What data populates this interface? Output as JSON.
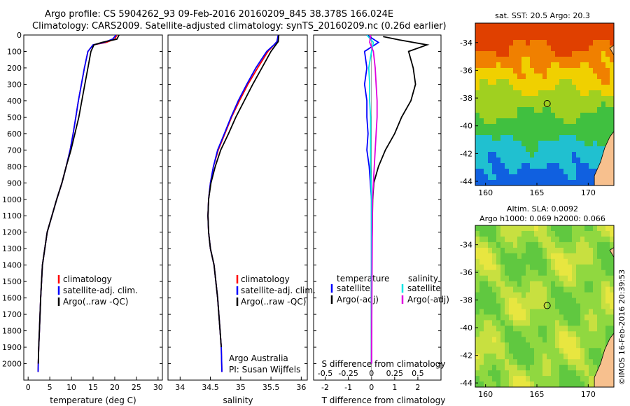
{
  "header": {
    "line1": "Argo profile: CS 5904262_93 09-Feb-2016 20160209_845 38.378S 166.024E",
    "line2": "Climatology: CARS2009. Satellite-adjusted climatology: synTS_20160209.nc (0.26d earlier)"
  },
  "colors": {
    "climatology": "#ff0000",
    "satellite": "#0000ff",
    "argo": "#000000",
    "sal_satellite": "#00e5e5",
    "sal_argo": "#e000e0",
    "land": "#f7c08e"
  },
  "chart_data": [
    {
      "type": "line",
      "xlabel": "temperature (deg C)",
      "ylabel": "",
      "xlim": [
        -1,
        31
      ],
      "ylim": [
        2100,
        0
      ],
      "x_ticks": [
        "0",
        "5",
        "10",
        "15",
        "20",
        "25",
        "30"
      ],
      "y_ticks": [
        "0",
        "100",
        "200",
        "300",
        "400",
        "500",
        "600",
        "700",
        "800",
        "900",
        "1000",
        "1100",
        "1200",
        "1300",
        "1400",
        "1500",
        "1600",
        "1700",
        "1800",
        "1900",
        "2000"
      ],
      "legend": [
        "climatology",
        "satellite-adj. clim.",
        "Argo(..raw -QC)"
      ],
      "legend_position": "lower-center",
      "series": [
        {
          "name": "climatology",
          "color": "#ff0000",
          "x": [
            20.5,
            20,
            18,
            15,
            13.8,
            13,
            12.3,
            11.6,
            11,
            10.4,
            9.7,
            8.8,
            7.8,
            6.6,
            5.5,
            4.4,
            3.3,
            2.9,
            2.6,
            2.45,
            2.35,
            2.3
          ],
          "y": [
            0,
            25,
            45,
            60,
            100,
            200,
            300,
            400,
            500,
            600,
            700,
            800,
            900,
            1000,
            1100,
            1200,
            1400,
            1600,
            1800,
            1900,
            2000,
            2050
          ]
        },
        {
          "name": "satellite-adj. clim.",
          "color": "#0000ff",
          "x": [
            20.3,
            19.5,
            17.5,
            15,
            13.8,
            13,
            12.3,
            11.6,
            11,
            10.4,
            9.7,
            8.8,
            7.8,
            6.6,
            5.5,
            4.4,
            3.3,
            2.9,
            2.6,
            2.45,
            2.35,
            2.3
          ],
          "y": [
            0,
            25,
            45,
            60,
            100,
            200,
            300,
            400,
            500,
            600,
            700,
            800,
            900,
            1000,
            1100,
            1200,
            1400,
            1600,
            1800,
            1900,
            2000,
            2050
          ]
        },
        {
          "name": "Argo(..raw -QC)",
          "color": "#000000",
          "x": [
            21,
            20.5,
            17,
            15.2,
            14.5,
            13.8,
            13.1,
            12.4,
            11.7,
            10.8,
            9.9,
            8.8,
            7.8,
            6.6,
            5.5,
            4.4,
            3.3,
            2.9,
            2.6,
            2.45,
            2.35
          ],
          "y": [
            0,
            25,
            45,
            60,
            100,
            200,
            300,
            400,
            500,
            600,
            700,
            800,
            900,
            1000,
            1100,
            1200,
            1400,
            1600,
            1800,
            1900,
            2000
          ]
        }
      ]
    },
    {
      "type": "line",
      "xlabel": "salinity",
      "ylabel": "",
      "xlim": [
        33.8,
        36.1
      ],
      "ylim": [
        2100,
        0
      ],
      "x_ticks": [
        "34",
        "34.5",
        "35",
        "35.5",
        "36"
      ],
      "legend": [
        "climatology",
        "satellite-adj. clim.",
        "Argo(..raw -QC)"
      ],
      "legend_position": "lower-right",
      "annotation": [
        "Argo Australia",
        "PI: Susan Wijffels"
      ],
      "series": [
        {
          "name": "climatology",
          "color": "#ff0000",
          "x": [
            35.62,
            35.6,
            35.55,
            35.45,
            35.28,
            35.12,
            34.98,
            34.85,
            34.74,
            34.63,
            34.55,
            34.5,
            34.47,
            34.46,
            34.47,
            34.5,
            34.56,
            34.62,
            34.66,
            34.68,
            34.69
          ],
          "y": [
            0,
            40,
            60,
            100,
            200,
            300,
            400,
            500,
            600,
            700,
            800,
            900,
            1000,
            1100,
            1200,
            1300,
            1400,
            1600,
            1800,
            1900,
            2050
          ]
        },
        {
          "name": "satellite-adj. clim.",
          "color": "#0000ff",
          "x": [
            35.62,
            35.6,
            35.55,
            35.43,
            35.25,
            35.1,
            34.96,
            34.84,
            34.73,
            34.62,
            34.55,
            34.5,
            34.47,
            34.46,
            34.47,
            34.5,
            34.56,
            34.62,
            34.66,
            34.68,
            34.69
          ],
          "y": [
            0,
            40,
            60,
            100,
            200,
            300,
            400,
            500,
            600,
            700,
            800,
            900,
            1000,
            1100,
            1200,
            1300,
            1400,
            1600,
            1800,
            1900,
            2050
          ]
        },
        {
          "name": "Argo(..raw -QC)",
          "color": "#000000",
          "x": [
            35.63,
            35.62,
            35.58,
            35.5,
            35.35,
            35.2,
            35.06,
            34.92,
            34.8,
            34.67,
            34.58,
            34.51,
            34.47,
            34.46,
            34.47,
            34.5,
            34.56,
            34.62,
            34.66,
            34.68
          ],
          "y": [
            0,
            40,
            60,
            100,
            200,
            300,
            400,
            500,
            600,
            700,
            800,
            900,
            1000,
            1100,
            1200,
            1300,
            1400,
            1600,
            1800,
            1900
          ]
        }
      ]
    },
    {
      "type": "line",
      "title": "S difference from climatology",
      "xlabel": "T difference from climatology",
      "ylabel": "",
      "xlim": [
        -2.5,
        3
      ],
      "ylim": [
        2100,
        0
      ],
      "x_ticks": [
        "-2",
        "-1",
        "0",
        "1",
        "2"
      ],
      "x_ticks_top": [
        "-0.5",
        "-0.25",
        "0",
        "0.25",
        "0.5"
      ],
      "legend_temperature_title": "temperature",
      "legend_salinity_title": "salinity",
      "legend": [
        "satellite",
        "Argo(-adj)",
        "satellite",
        "Argo(-adj)"
      ],
      "legend_position": "lower-center",
      "series": [
        {
          "name": "temperature satellite",
          "color": "#0000ff",
          "x": [
            -0.2,
            0.3,
            -0.3,
            -0.2,
            -0.3,
            -0.2,
            -0.2,
            -0.15,
            -0.2,
            -0.1,
            -0.05,
            0,
            0,
            0
          ],
          "y": [
            0,
            45,
            100,
            200,
            300,
            400,
            500,
            600,
            700,
            800,
            900,
            1000,
            1500,
            2000
          ]
        },
        {
          "name": "temperature Argo(-adj)",
          "color": "#000000",
          "x": [
            0.5,
            1.2,
            2.4,
            1.6,
            1.8,
            1.9,
            1.7,
            1.3,
            1.0,
            0.6,
            0.3,
            0.1,
            0.05,
            0,
            0
          ],
          "y": [
            10,
            30,
            60,
            100,
            200,
            300,
            400,
            500,
            600,
            700,
            800,
            900,
            1000,
            1500,
            2000
          ]
        },
        {
          "name": "salinity satellite",
          "color": "#00e5e5",
          "x": [
            -0.05,
            0.02,
            0,
            -0.03,
            -0.02,
            -0.02,
            -0.01,
            -0.01,
            -0.01,
            0,
            0
          ],
          "y": [
            0,
            45,
            100,
            200,
            300,
            400,
            500,
            600,
            800,
            1000,
            2000
          ]
        },
        {
          "name": "salinity Argo(-adj)",
          "color": "#e000e0",
          "x": [
            -0.01,
            -0.02,
            0.02,
            0.04,
            0.05,
            0.06,
            0.06,
            0.05,
            0.04,
            0.03,
            0.02,
            0.01,
            0
          ],
          "y": [
            0,
            45,
            100,
            200,
            300,
            400,
            500,
            600,
            700,
            800,
            900,
            1000,
            2000
          ]
        }
      ]
    },
    {
      "type": "heatmap",
      "title": "sat. SST: 20.5 Argo: 20.3",
      "xlim": [
        159,
        172.5
      ],
      "ylim": [
        -44.3,
        -32.6
      ],
      "x_ticks": [
        "160",
        "165",
        "170"
      ],
      "y_ticks": [
        "-34",
        "-36",
        "-38",
        "-40",
        "-42",
        "-44"
      ],
      "marker": {
        "lon": 166.0,
        "lat": -38.4
      }
    },
    {
      "type": "heatmap",
      "title": "Altim. SLA: 0.0092",
      "subtitle": "Argo h1000: 0.069 h2000: 0.066",
      "xlim": [
        159,
        172.5
      ],
      "ylim": [
        -44.3,
        -32.6
      ],
      "x_ticks": [
        "160",
        "165",
        "170"
      ],
      "y_ticks": [
        "-34",
        "-36",
        "-38",
        "-40",
        "-42",
        "-44"
      ],
      "marker": {
        "lon": 166.0,
        "lat": -38.4
      }
    }
  ],
  "footer": {
    "credit": "©IMOS 16-Feb-2016 20:39:53"
  }
}
